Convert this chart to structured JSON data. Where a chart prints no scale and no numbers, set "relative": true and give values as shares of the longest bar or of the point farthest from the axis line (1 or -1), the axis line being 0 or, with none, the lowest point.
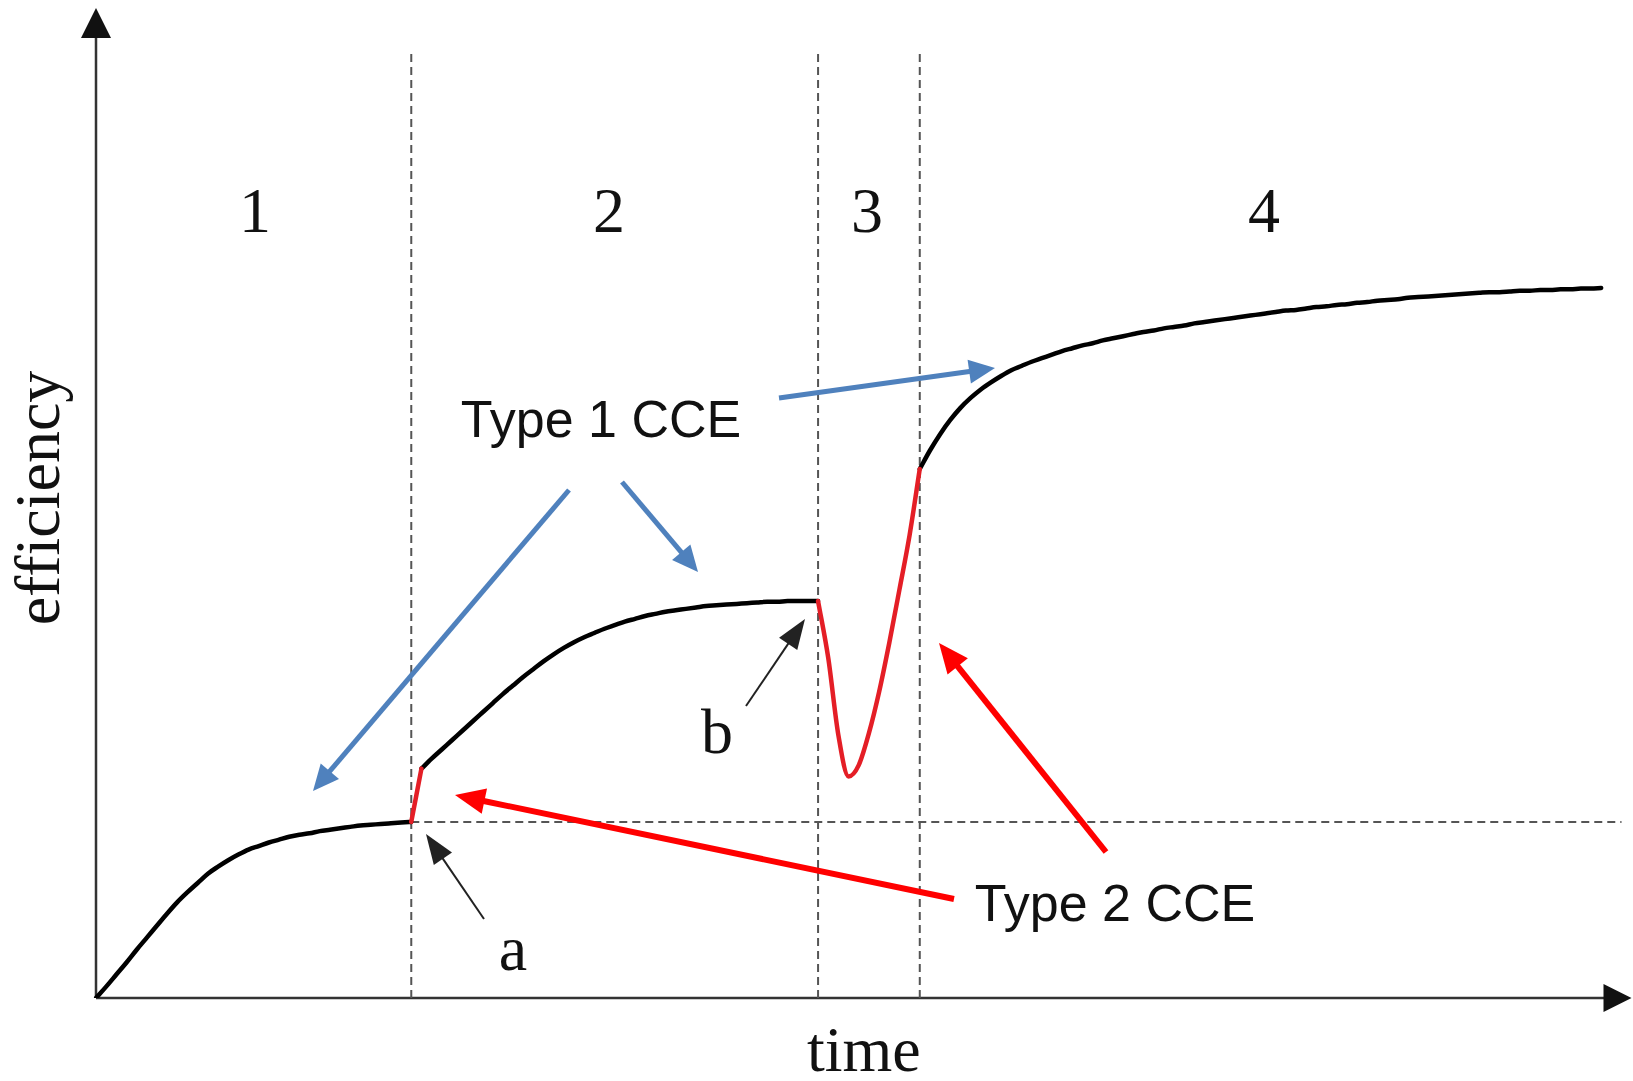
{
  "chart_data": {
    "type": "line",
    "xlabel": "time",
    "ylabel": "efficiency",
    "relative": true,
    "categories": [
      null,
      null,
      null,
      null,
      null,
      null,
      null,
      null,
      null,
      null,
      null,
      null,
      null,
      null,
      null,
      null,
      null,
      null,
      null,
      null,
      null,
      null,
      null,
      null,
      null,
      null,
      null,
      null,
      null,
      null,
      null,
      null,
      null,
      null,
      null,
      null,
      null,
      null,
      null,
      null,
      null,
      null,
      null,
      null,
      null,
      null,
      null,
      null,
      null,
      null,
      null,
      null,
      null,
      null,
      null,
      null,
      null,
      null,
      null,
      null,
      null,
      null,
      null,
      null,
      null,
      null,
      null,
      null,
      null,
      null,
      null,
      null,
      null,
      null,
      null,
      null,
      null,
      null,
      null,
      null,
      null,
      null,
      null,
      null,
      null,
      null,
      null,
      null,
      null,
      null,
      null,
      null,
      null,
      null,
      null,
      null,
      null,
      null,
      null,
      null,
      null,
      null,
      null,
      null,
      null,
      null,
      null,
      null,
      null,
      null,
      null,
      null,
      null,
      null,
      null,
      null,
      null,
      null,
      null,
      null,
      null,
      null,
      null,
      null,
      null,
      null,
      null,
      null,
      null,
      null,
      null,
      null,
      null,
      null,
      null,
      null,
      null,
      null,
      null,
      null,
      null,
      null,
      null,
      null,
      null,
      null,
      null,
      null,
      null,
      null,
      null
    ],
    "series": [
      {
        "color": "#000000",
        "values": [
          0,
          0.016,
          0.033,
          0.05,
          0.068,
          0.085,
          0.102,
          0.119,
          0.135,
          0.149,
          0.162,
          0.175,
          0.185,
          0.194,
          0.202,
          0.209,
          0.214,
          0.219,
          0.223,
          0.227,
          0.23,
          0.232,
          0.235,
          0.237,
          0.239,
          0.241,
          0.243,
          0.244,
          0.245,
          0.246,
          0.247,
          0.248,
          null,
          null,
          null,
          null,
          null,
          null,
          null,
          null,
          null,
          null,
          null,
          null,
          null,
          null,
          null,
          null,
          null,
          null,
          null,
          null,
          null,
          null,
          null,
          null,
          null,
          null,
          null,
          null,
          null,
          null,
          null,
          null,
          null,
          null,
          null,
          null,
          null,
          null,
          null,
          null,
          null,
          null,
          null,
          null,
          null,
          null,
          null,
          null,
          null,
          0.745,
          0.771,
          0.794,
          0.814,
          0.831,
          0.845,
          0.857,
          0.867,
          0.876,
          0.884,
          0.89,
          0.896,
          0.901,
          0.906,
          0.911,
          0.915,
          0.919,
          0.922,
          0.926,
          0.929,
          0.932,
          0.935,
          0.938,
          0.94,
          0.943,
          0.945,
          0.947,
          0.95,
          0.952,
          0.954,
          0.956,
          0.958,
          0.96,
          0.962,
          0.964,
          0.966,
          0.968,
          0.969,
          0.971,
          0.973,
          0.974,
          0.976,
          0.977,
          0.979,
          0.98,
          0.982,
          0.983,
          0.984,
          0.986,
          0.987,
          0.988,
          0.989,
          0.99,
          0.991,
          0.992,
          0.993,
          0.994,
          0.994,
          0.995,
          0.996,
          0.996,
          0.997,
          0.997,
          0.998,
          0.998,
          0.999,
          0.999,
          1,
          null,
          null
        ]
      },
      {
        "color": "#000000",
        "values": [
          null,
          null,
          null,
          null,
          null,
          null,
          null,
          null,
          null,
          null,
          null,
          null,
          null,
          null,
          null,
          null,
          null,
          null,
          null,
          null,
          null,
          null,
          null,
          null,
          null,
          null,
          null,
          null,
          null,
          null,
          null,
          null,
          0.323,
          0.337,
          0.35,
          0.363,
          0.376,
          0.389,
          0.402,
          0.415,
          0.428,
          0.44,
          0.452,
          0.463,
          0.474,
          0.484,
          0.493,
          0.501,
          0.508,
          0.514,
          0.52,
          0.525,
          0.53,
          0.534,
          0.538,
          0.541,
          0.544,
          0.546,
          0.548,
          0.55,
          0.552,
          0.553,
          0.554,
          0.555,
          0.556,
          0.557,
          0.558,
          0.558,
          0.559,
          0.559,
          0.559,
          0.559,
          null,
          null,
          null,
          null,
          null,
          null,
          null,
          null,
          null,
          null,
          null,
          null,
          null,
          null,
          null,
          null,
          null,
          null,
          null,
          null,
          null,
          null,
          null,
          null,
          null,
          null,
          null,
          null,
          null,
          null,
          null,
          null,
          null,
          null,
          null,
          null,
          null,
          null,
          null,
          null,
          null,
          null,
          null,
          null,
          null,
          null,
          null,
          null,
          null,
          null,
          null,
          null,
          null,
          null,
          null,
          null,
          null,
          null,
          null,
          null,
          null,
          null,
          null,
          null,
          null,
          null,
          null,
          null,
          null,
          null,
          null,
          null,
          null,
          null,
          null,
          null,
          null,
          null,
          null
        ]
      },
      {
        "color": "#e41e26",
        "values": [
          null,
          null,
          null,
          null,
          null,
          null,
          null,
          null,
          null,
          null,
          null,
          null,
          null,
          null,
          null,
          null,
          null,
          null,
          null,
          null,
          null,
          null,
          null,
          null,
          null,
          null,
          null,
          null,
          null,
          null,
          null,
          0.248,
          0.323,
          null,
          null,
          null,
          null,
          null,
          null,
          null,
          null,
          null,
          null,
          null,
          null,
          null,
          null,
          null,
          null,
          null,
          null,
          null,
          null,
          null,
          null,
          null,
          null,
          null,
          null,
          null,
          null,
          null,
          null,
          null,
          null,
          null,
          null,
          null,
          null,
          null,
          null,
          0.559,
          0.479,
          0.37,
          0.312,
          0.328,
          0.373,
          0.431,
          0.5,
          0.575,
          0.652,
          0.745,
          null,
          null,
          null,
          null,
          null,
          null,
          null,
          null,
          null,
          null,
          null,
          null,
          null,
          null,
          null,
          null,
          null,
          null,
          null,
          null,
          null,
          null,
          null,
          null,
          null,
          null,
          null,
          null,
          null,
          null,
          null,
          null,
          null,
          null,
          null,
          null,
          null,
          null,
          null,
          null,
          null,
          null,
          null,
          null,
          null,
          null,
          null,
          null,
          null,
          null,
          null,
          null,
          null,
          null,
          null,
          null,
          null,
          null,
          null,
          null,
          null,
          null,
          null,
          null,
          null,
          null,
          null,
          null,
          null
        ]
      }
    ],
    "ref_lines": [
      {
        "axis": "y",
        "value": 0.248,
        "color": "#555555",
        "line_style": "dashed"
      }
    ],
    "annotations": [
      "1",
      "2",
      "3",
      "4",
      "Type 1 CCE",
      "b",
      "Type 2 CCE",
      "a"
    ]
  }
}
